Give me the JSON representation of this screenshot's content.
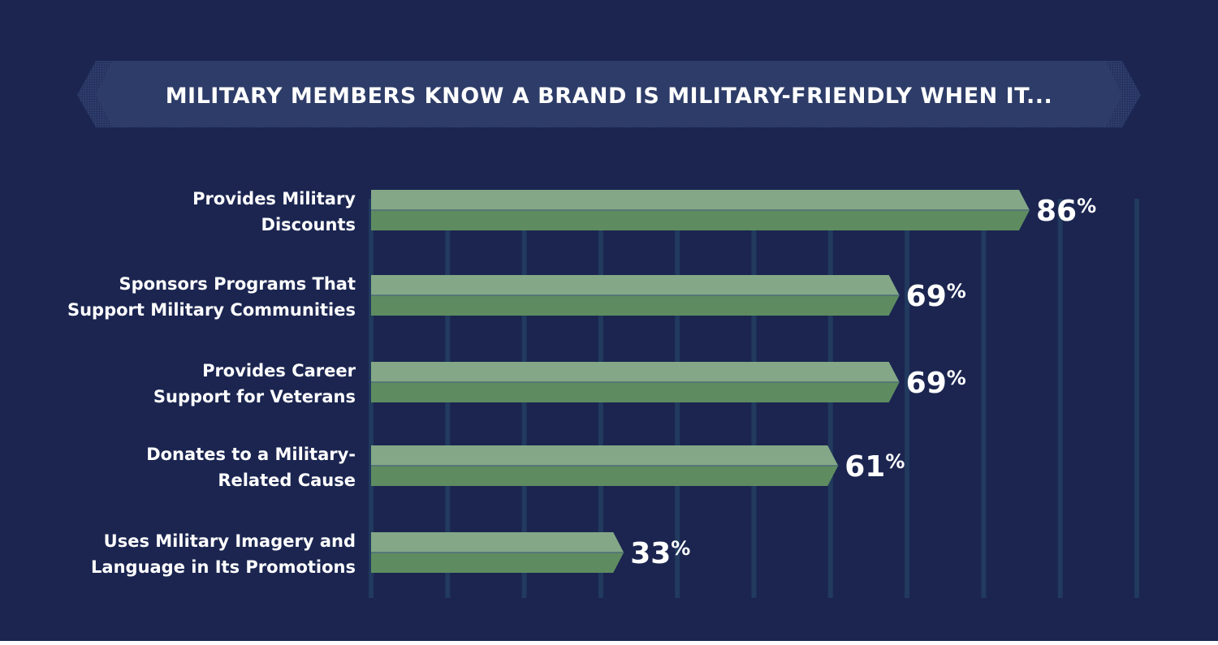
{
  "chart_data": {
    "type": "bar",
    "orientation": "horizontal",
    "title": "MILITARY MEMBERS KNOW A BRAND IS MILITARY-FRIENDLY WHEN IT...",
    "categories": [
      [
        "Provides Military",
        "Discounts"
      ],
      [
        "Sponsors Programs That",
        "Support Military Communities"
      ],
      [
        "Provides Career",
        "Support for Veterans"
      ],
      [
        "Donates to a Military-",
        "Related Cause"
      ],
      [
        "Uses Military Imagery and",
        "Language in Its Promotions"
      ]
    ],
    "values": [
      86,
      69,
      69,
      61,
      33
    ],
    "value_labels": [
      "86",
      "69",
      "69",
      "61",
      "33"
    ],
    "value_suffix": "%",
    "xlim": [
      0,
      100
    ],
    "grid": true,
    "colors": {
      "background": "#1b2550",
      "banner": "#2d3c68",
      "bar_top": "#84a887",
      "bar_bottom": "#5e8c60",
      "grid": "#213a5e",
      "text": "#ffffff"
    }
  }
}
